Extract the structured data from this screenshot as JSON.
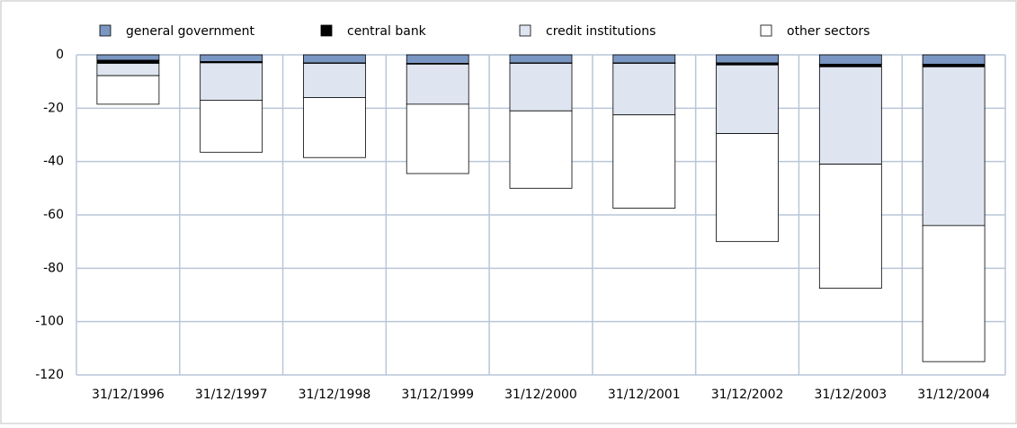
{
  "chart_data": {
    "type": "stacked_bar",
    "categories": [
      "31/12/1996",
      "31/12/1997",
      "31/12/1998",
      "31/12/1999",
      "31/12/2000",
      "31/12/2001",
      "31/12/2002",
      "31/12/2003",
      "31/12/2004"
    ],
    "series": [
      {
        "name": "general government",
        "color": "#7a96c2",
        "values": [
          -2,
          -2.5,
          -3,
          -3.2,
          -3,
          -3,
          -3,
          -3.5,
          -3.5
        ]
      },
      {
        "name": "central bank",
        "color": "#000000",
        "values": [
          -1.2,
          -0.5,
          -0.2,
          -0.3,
          -0.2,
          -0.2,
          -0.8,
          -1,
          -1
        ]
      },
      {
        "name": "credit institutions",
        "color": "#dfe5f0",
        "values": [
          -4.6,
          -14,
          -12.8,
          -15,
          -17.8,
          -19.3,
          -25.7,
          -36.5,
          -59.5
        ]
      },
      {
        "name": "other sectors",
        "color": "#ffffff",
        "values": [
          -10.7,
          -19.5,
          -22.5,
          -26,
          -29,
          -35,
          -40.5,
          -46.5,
          -51
        ]
      }
    ],
    "ylim": [
      -120,
      0
    ],
    "yticks": [
      0,
      -20,
      -40,
      -60,
      -80,
      -100,
      -120
    ],
    "grid": true
  }
}
